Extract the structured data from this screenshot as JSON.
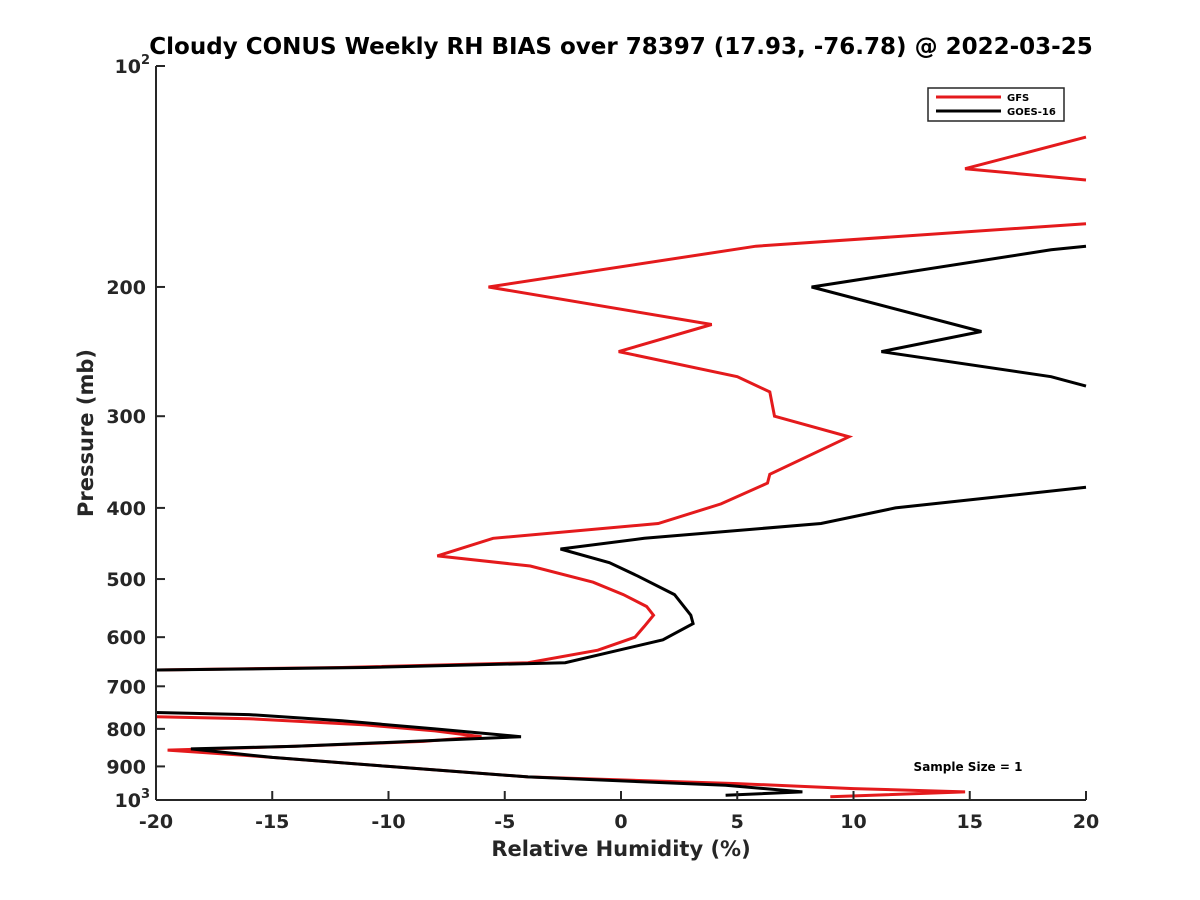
{
  "chart_data": {
    "type": "line",
    "title": "Cloudy CONUS Weekly RH BIAS over 78397 (17.93, -76.78) @ 2022-03-25",
    "xlabel": "Relative Humidity (%)",
    "ylabel": "Pressure (mb)",
    "xlim": [
      -20,
      20
    ],
    "ylim": [
      100,
      1000
    ],
    "y_scale": "log",
    "y_reversed": true,
    "x_ticks": [
      "-20",
      "-15",
      "-10",
      "-5",
      "0",
      "5",
      "10",
      "15",
      "20"
    ],
    "y_ticks": [
      {
        "value": 100,
        "base": "10",
        "exp": "2"
      },
      {
        "value": 200,
        "label": "200"
      },
      {
        "value": 300,
        "label": "300"
      },
      {
        "value": 400,
        "label": "400"
      },
      {
        "value": 500,
        "label": "500"
      },
      {
        "value": 600,
        "label": "600"
      },
      {
        "value": 700,
        "label": "700"
      },
      {
        "value": 800,
        "label": "800"
      },
      {
        "value": 900,
        "label": "900"
      },
      {
        "value": 1000,
        "base": "10",
        "exp": "3"
      }
    ],
    "grid": false,
    "legend_position": "top-right",
    "annotation": "Sample Size = 1",
    "series": [
      {
        "name": "GFS",
        "color": "#e41a1c",
        "segments": [
          [
            [
              20,
              125
            ],
            [
              14.8,
              138
            ],
            [
              20,
              143
            ]
          ],
          [
            [
              20,
              164
            ],
            [
              5.8,
              176
            ],
            [
              -5.7,
              200
            ],
            [
              3.9,
              225
            ],
            [
              -0.1,
              245
            ],
            [
              5,
              265
            ],
            [
              6.4,
              278
            ],
            [
              6.6,
              300
            ],
            [
              9.8,
              320
            ],
            [
              6.4,
              360
            ],
            [
              6.3,
              370
            ],
            [
              4.3,
              395
            ],
            [
              1.6,
              420
            ],
            [
              -5.5,
              440
            ],
            [
              -7.9,
              465
            ],
            [
              -3.9,
              480
            ],
            [
              -1.2,
              505
            ],
            [
              0.1,
              525
            ],
            [
              1.1,
              545
            ],
            [
              1.4,
              560
            ],
            [
              1,
              580
            ],
            [
              0.6,
              600
            ],
            [
              -1,
              625
            ],
            [
              -4,
              650
            ],
            [
              -12,
              660
            ],
            [
              -20,
              665
            ]
          ],
          [
            [
              -20,
              770
            ],
            [
              -16,
              775
            ],
            [
              -11,
              790
            ],
            [
              -8,
              805
            ],
            [
              -6,
              820
            ],
            [
              -8.5,
              832
            ],
            [
              -14,
              845
            ],
            [
              -19.5,
              855
            ],
            [
              -16,
              870
            ],
            [
              -10,
              900
            ],
            [
              -4,
              930
            ],
            [
              5,
              950
            ],
            [
              10,
              965
            ],
            [
              14.8,
              975
            ],
            [
              9,
              990
            ]
          ]
        ]
      },
      {
        "name": "GOES-16",
        "color": "#000000",
        "segments": [
          [
            [
              20,
              176
            ],
            [
              18.5,
              178
            ],
            [
              8.2,
              200
            ],
            [
              15.5,
              230
            ],
            [
              11.2,
              245
            ],
            [
              18.5,
              265
            ],
            [
              20,
              273
            ]
          ],
          [
            [
              20,
              375
            ],
            [
              11.8,
              400
            ],
            [
              8.6,
              420
            ],
            [
              1,
              440
            ],
            [
              -2.6,
              455
            ],
            [
              -0.5,
              475
            ],
            [
              0.7,
              495
            ],
            [
              2.3,
              525
            ],
            [
              3,
              560
            ],
            [
              3.1,
              575
            ],
            [
              1.8,
              605
            ],
            [
              -0.1,
              625
            ],
            [
              -2.4,
              650
            ],
            [
              -11,
              660
            ],
            [
              -20,
              665
            ]
          ],
          [
            [
              -20,
              760
            ],
            [
              -16,
              765
            ],
            [
              -12,
              780
            ],
            [
              -8,
              800
            ],
            [
              -4.3,
              820
            ],
            [
              -9,
              832
            ],
            [
              -14,
              845
            ],
            [
              -18.5,
              852
            ],
            [
              -15,
              875
            ],
            [
              -10,
              900
            ],
            [
              -4,
              930
            ],
            [
              4.5,
              955
            ],
            [
              7.8,
              975
            ],
            [
              4.5,
              985
            ]
          ]
        ]
      }
    ]
  }
}
